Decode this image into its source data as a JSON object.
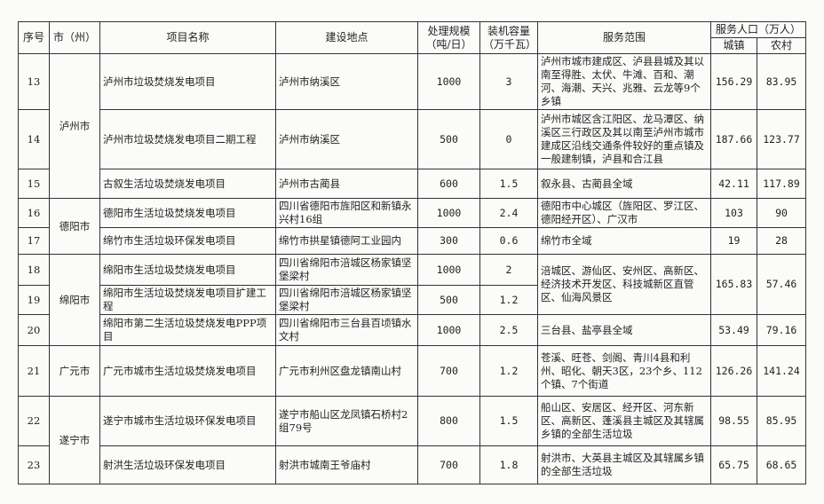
{
  "header": {
    "seq": "序号",
    "city": "市（州）",
    "project": "项目名称",
    "location": "建设地点",
    "scale": "处理规模\n（吨/日）",
    "capacity": "装机容量\n（万千瓦）",
    "scope": "服务范围",
    "population": "服务人口（万人）",
    "urban": "城镇",
    "rural": "农村"
  },
  "cities": [
    "泸州市",
    "德阳市",
    "绵阳市",
    "广元市",
    "遂宁市"
  ],
  "rows": [
    {
      "seq": "13",
      "project": "泸州市垃圾焚烧发电项目",
      "location": "泸州市纳溪区",
      "scale": "1000",
      "capacity": "3",
      "scope": "泸州市城市建成区、泸县县城及其以南至得胜、太伏、牛滩、百和、潮河、海潮、天兴、兆雅、云龙等9个乡镇",
      "urban": "156.29",
      "rural": "83.95"
    },
    {
      "seq": "14",
      "project": "泸州市垃圾焚烧发电项目二期工程",
      "location": "泸州市纳溪区",
      "scale": "500",
      "capacity": "0",
      "scope": "泸州市城区含江阳区、龙马潭区、纳溪区三行政区及其以南至泸州市城市建成区沿线交通条件较好的重点镇及一般建制镇，泸县和合江县",
      "urban": "187.66",
      "rural": "123.77"
    },
    {
      "seq": "15",
      "project": "古叙生活垃圾焚烧发电项目",
      "location": "泸州市古蔺县",
      "scale": "600",
      "capacity": "1.5",
      "scope": "叙永县、古蔺县全域",
      "urban": "42.11",
      "rural": "117.89"
    },
    {
      "seq": "16",
      "project": "德阳市生活垃圾焚烧发电项目",
      "location": "四川省德阳市旌阳区和新镇永兴村16组",
      "scale": "1000",
      "capacity": "2.4",
      "scope": "德阳市中心城区（旌阳区、罗江区、德阳经开区）、广汉市",
      "urban": "103",
      "rural": "90"
    },
    {
      "seq": "17",
      "project": "绵竹市生活垃圾环保发电项目",
      "location": "绵竹市拱星镇德阿工业园内",
      "scale": "300",
      "capacity": "0.6",
      "scope": "绵竹市全域",
      "urban": "19",
      "rural": "28"
    },
    {
      "seq": "18",
      "project": "绵阳市生活垃圾焚烧发电项目",
      "location": "四川省绵阳市涪城区杨家镇坚堡梁村",
      "scale": "1000",
      "capacity": "2",
      "scope": "涪城区、游仙区、安州区、高新区、经济技术开发区、科技城新区直管区、仙海风景区",
      "urban": "165.83",
      "rural": "57.46"
    },
    {
      "seq": "19",
      "project": "绵阳市生活垃圾焚烧发电项目扩建工程",
      "location": "四川省绵阳市涪城区杨家镇坚堡梁村",
      "scale": "500",
      "capacity": "1.2"
    },
    {
      "seq": "20",
      "project": "绵阳市第二生活垃圾焚烧发电PPP项目",
      "location": "四川省绵阳市三台县百顷镇水文村",
      "scale": "1000",
      "capacity": "2.5",
      "scope": "三台县、盐亭县全域",
      "urban": "53.49",
      "rural": "79.16"
    },
    {
      "seq": "21",
      "project": "广元市城市生活垃圾焚烧发电项目",
      "location": "广元市利州区盘龙镇南山村",
      "scale": "700",
      "capacity": "1.2",
      "scope": "苍溪、旺苍、剑阁、青川4县和利州、昭化、朝天3区，23个乡、112个镇、7个街道",
      "urban": "126.26",
      "rural": "141.24"
    },
    {
      "seq": "22",
      "project": "遂宁市城市生活垃圾环保发电项目",
      "location": "遂宁市船山区龙凤镇石桥村2组79号",
      "scale": "800",
      "capacity": "1.5",
      "scope": "船山区、安居区、经开区、河东新区、高新区、蓬溪县主城区及其辖属乡镇的全部生活垃圾",
      "urban": "98.55",
      "rural": "85.95"
    },
    {
      "seq": "23",
      "project": "射洪生活垃圾环保发电项目",
      "location": "射洪市城南王爷庙村",
      "scale": "700",
      "capacity": "1.8",
      "scope": "射洪市、大英县主城区及其辖属乡镇的全部生活垃圾",
      "urban": "65.75",
      "rural": "68.65"
    }
  ]
}
